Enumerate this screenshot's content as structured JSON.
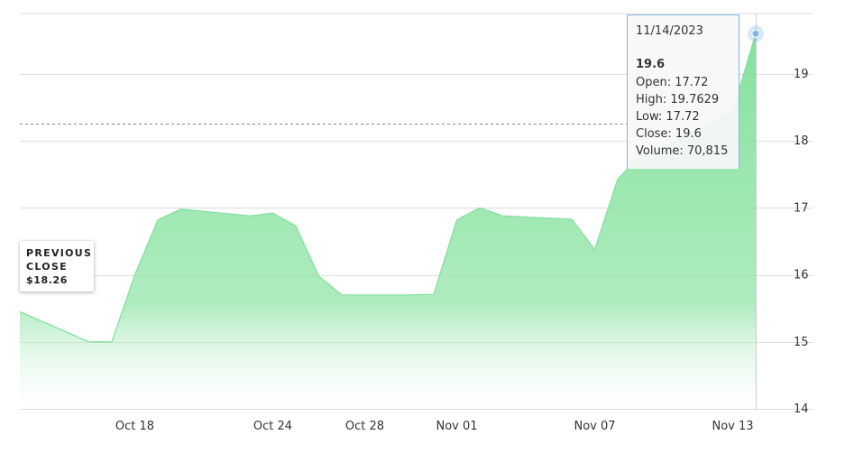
{
  "chart_data": {
    "type": "area",
    "title": "",
    "xlabel": "",
    "ylabel": "",
    "x_tick_labels": [
      "Oct 18",
      "Oct 24",
      "Oct 28",
      "Nov 01",
      "Nov 07",
      "Nov 13"
    ],
    "y_tick_labels": [
      "14",
      "15",
      "16",
      "17",
      "18",
      "19"
    ],
    "ylim": [
      14,
      19.9
    ],
    "y_axis_position": "right",
    "grid": true,
    "x": [
      "2023-10-13",
      "2023-10-16",
      "2023-10-17",
      "2023-10-18",
      "2023-10-19",
      "2023-10-20",
      "2023-10-23",
      "2023-10-24",
      "2023-10-25",
      "2023-10-26",
      "2023-10-27",
      "2023-10-30",
      "2023-10-31",
      "2023-11-01",
      "2023-11-02",
      "2023-11-03",
      "2023-11-06",
      "2023-11-07",
      "2023-11-08",
      "2023-11-09",
      "2023-11-10",
      "2023-11-13",
      "2023-11-14"
    ],
    "values": [
      15.45,
      15.0,
      15.0,
      16.0,
      16.82,
      16.98,
      16.88,
      16.92,
      16.73,
      15.98,
      15.7,
      15.7,
      15.71,
      16.82,
      17.0,
      16.88,
      16.83,
      16.38,
      17.43,
      17.78,
      17.9,
      18.45,
      19.6
    ],
    "color": "#6fdc8c",
    "previous_close": {
      "label": "PREVIOUS CLOSE",
      "value": "$18.26",
      "y": 18.26
    },
    "tooltip": {
      "date": "11/14/2023",
      "price": "19.6",
      "rows": [
        "Open: 17.72",
        "High: 19.7629",
        "Low: 17.72",
        "Close: 19.6",
        "Volume: 70,815"
      ]
    }
  }
}
